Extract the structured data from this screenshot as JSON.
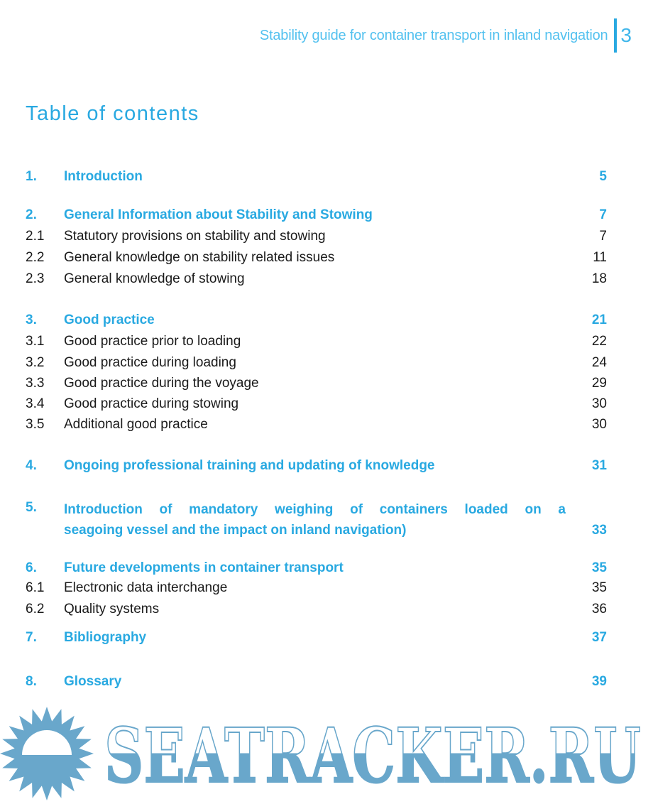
{
  "header": {
    "title": "Stability guide for container transport in inland navigation",
    "page_number": "3"
  },
  "heading": "Table of contents",
  "toc": {
    "entries": [
      {
        "num": "1.",
        "title": "Introduction",
        "page": "5"
      },
      {
        "num": "2.",
        "title": "General Information about Stability and Stowing",
        "page": "7"
      },
      {
        "num": "2.1",
        "title": "Statutory provisions on stability and stowing",
        "page": "7"
      },
      {
        "num": "2.2",
        "title": "General knowledge on stability related issues",
        "page": "11"
      },
      {
        "num": "2.3",
        "title": "General knowledge of stowing",
        "page": "18"
      },
      {
        "num": "3.",
        "title": "Good practice",
        "page": "21"
      },
      {
        "num": "3.1",
        "title": "Good practice prior to loading",
        "page": "22"
      },
      {
        "num": "3.2",
        "title": "Good practice during loading",
        "page": "24"
      },
      {
        "num": "3.3",
        "title": "Good practice during the voyage",
        "page": "29"
      },
      {
        "num": "3.4",
        "title": "Good practice during stowing",
        "page": "30"
      },
      {
        "num": "3.5",
        "title": "Additional good practice",
        "page": "30"
      },
      {
        "num": "4.",
        "title": "Ongoing professional training and updating of knowledge",
        "page": "31"
      },
      {
        "num": "5.",
        "title_line1": "Introduction of mandatory weighing of containers loaded on a",
        "title_line2": "seagoing vessel and the impact on inland navigation)",
        "page": "33"
      },
      {
        "num": "6.",
        "title": "Future developments in container transport",
        "page": "35"
      },
      {
        "num": "6.1",
        "title": "Electronic data interchange",
        "page": "35"
      },
      {
        "num": "6.2",
        "title": "Quality systems",
        "page": "36"
      },
      {
        "num": "7.",
        "title": "Bibliography",
        "page": "37"
      },
      {
        "num": "8.",
        "title": "Glossary",
        "page": "39"
      }
    ]
  },
  "watermark": {
    "text": "SEATRACKER.RU",
    "icon": "sun"
  },
  "colors": {
    "accent_blue": "#29a9e1",
    "header_blue": "#53c1ef",
    "body_text": "#1a1a1a",
    "watermark_blue": "#69a7cb"
  }
}
